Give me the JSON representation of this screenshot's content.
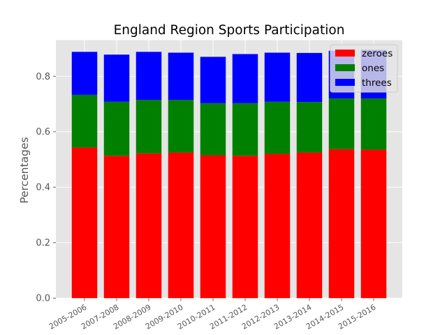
{
  "chart_data": {
    "type": "bar",
    "stacked": true,
    "title": "England Region Sports Participation",
    "xlabel": "",
    "ylabel": "Percentages",
    "categories": [
      "2005-2006",
      "2007-2008",
      "2008-2009",
      "2009-2010",
      "2010-2011",
      "2011-2012",
      "2012-2013",
      "2013-2014",
      "2014-2015",
      "2015-2016"
    ],
    "series": [
      {
        "name": "zeroes",
        "color": "#ff0000",
        "values": [
          0.543,
          0.513,
          0.522,
          0.525,
          0.515,
          0.513,
          0.52,
          0.525,
          0.537,
          0.535
        ]
      },
      {
        "name": "ones",
        "color": "#008000",
        "values": [
          0.19,
          0.195,
          0.193,
          0.19,
          0.188,
          0.19,
          0.188,
          0.182,
          0.183,
          0.185
        ]
      },
      {
        "name": "threes",
        "color": "#0000ff",
        "values": [
          0.155,
          0.17,
          0.173,
          0.17,
          0.167,
          0.177,
          0.177,
          0.177,
          0.172,
          0.175
        ]
      }
    ],
    "ylim": [
      0,
      0.93
    ],
    "yticks": [
      "0.0",
      "0.2",
      "0.4",
      "0.6",
      "0.8"
    ],
    "grid": true,
    "legend_position": "top-right",
    "style": {
      "background": "#e5e5e5",
      "grid_color": "#ffffff"
    }
  }
}
